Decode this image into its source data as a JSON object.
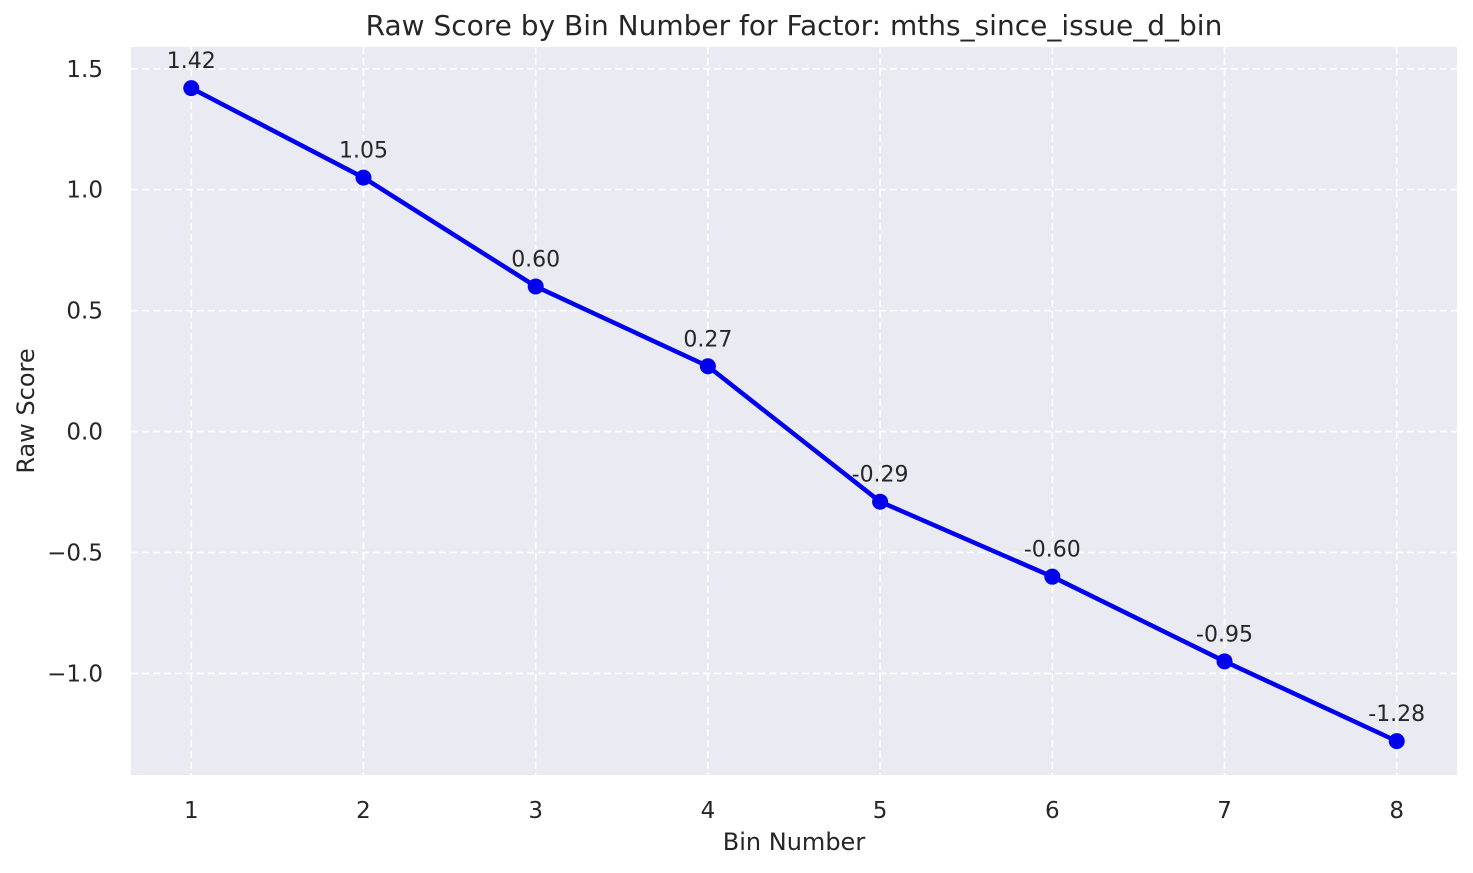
{
  "figure": {
    "background": "#FFFFFF"
  },
  "chart_data": {
    "type": "line",
    "title": "Raw Score by Bin Number for Factor: mths_since_issue_d_bin",
    "xlabel": "Bin Number",
    "ylabel": "Raw Score",
    "x": [
      1,
      2,
      3,
      4,
      5,
      6,
      7,
      8
    ],
    "values": [
      1.42,
      1.05,
      0.6,
      0.27,
      -0.29,
      -0.6,
      -0.95,
      -1.28
    ],
    "point_labels": [
      "1.42",
      "1.05",
      "0.60",
      "0.27",
      "-0.29",
      "-0.60",
      "-0.95",
      "-1.28"
    ],
    "x_ticks": [
      {
        "value": 1,
        "label": "1"
      },
      {
        "value": 2,
        "label": "2"
      },
      {
        "value": 3,
        "label": "3"
      },
      {
        "value": 4,
        "label": "4"
      },
      {
        "value": 5,
        "label": "5"
      },
      {
        "value": 6,
        "label": "6"
      },
      {
        "value": 7,
        "label": "7"
      },
      {
        "value": 8,
        "label": "8"
      }
    ],
    "y_ticks": [
      {
        "value": 1.5,
        "label": "1.5"
      },
      {
        "value": 1.0,
        "label": "1.0"
      },
      {
        "value": 0.5,
        "label": "0.5"
      },
      {
        "value": 0.0,
        "label": "0.0"
      },
      {
        "value": -0.5,
        "label": "−0.5"
      },
      {
        "value": -1.0,
        "label": "−1.0"
      }
    ],
    "xlim": [
      0.65,
      8.35
    ],
    "ylim": [
      -1.42,
      1.59
    ],
    "grid": {
      "on": true,
      "style": "dashed",
      "color": "#FFFFFF"
    },
    "legend": {
      "visible": false
    },
    "style": {
      "line_color": "#0000EE",
      "marker": "circle",
      "plot_bg": "#EAEAF2",
      "text_color": "#262626"
    }
  }
}
